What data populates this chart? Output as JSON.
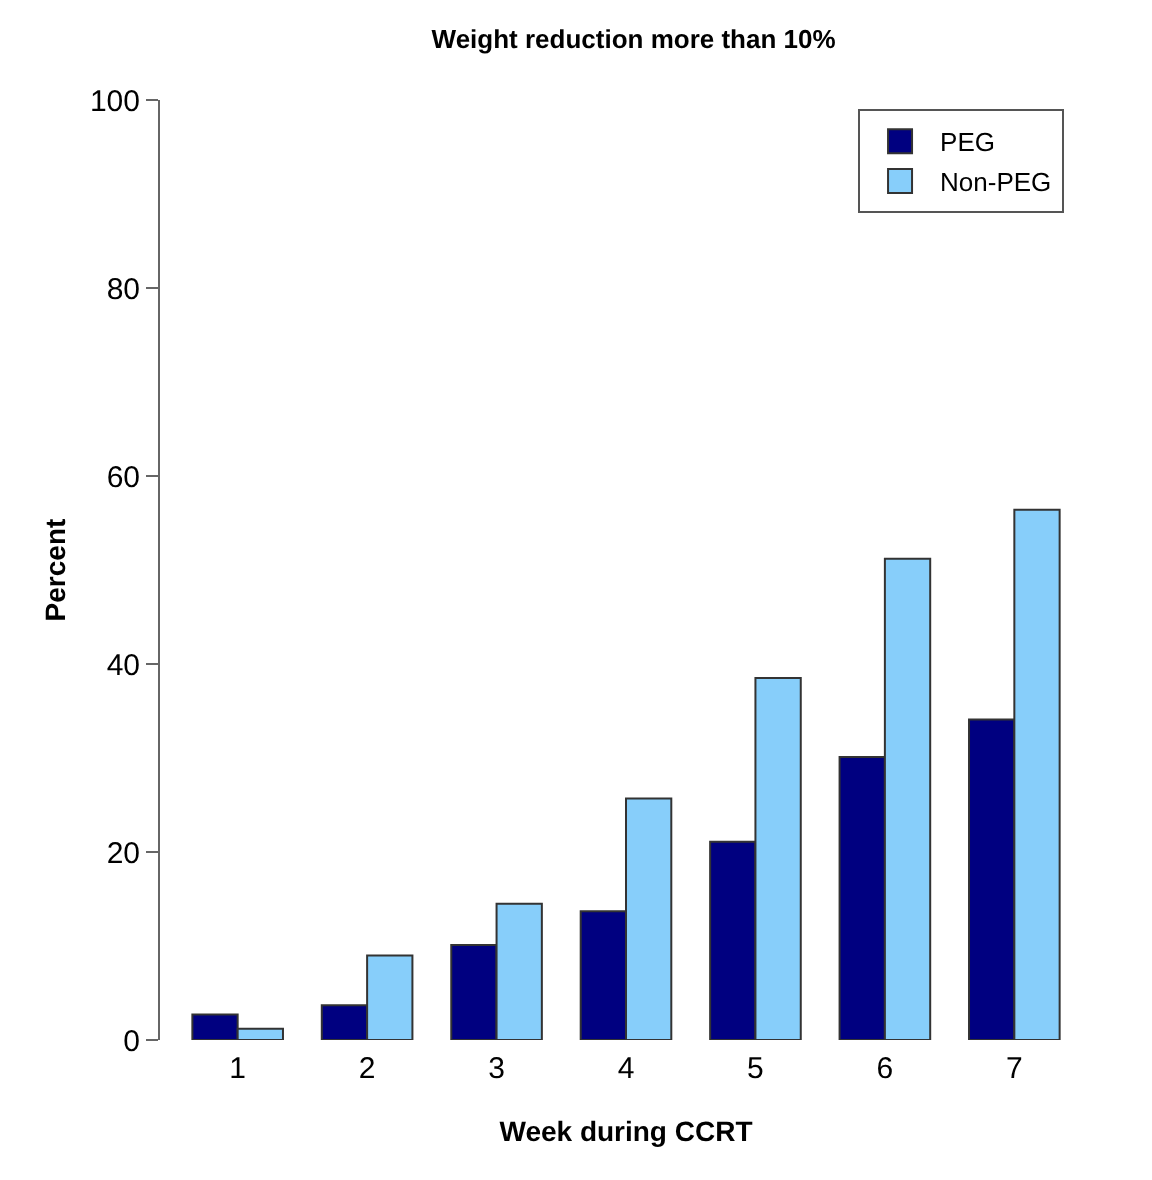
{
  "chart_data": {
    "type": "bar",
    "title": "Weight reduction more than 10%",
    "xlabel": "Week during CCRT",
    "ylabel": "Percent",
    "categories": [
      "1",
      "2",
      "3",
      "4",
      "5",
      "6",
      "7"
    ],
    "series": [
      {
        "name": "PEG",
        "color": "#000080",
        "values": [
          2.7,
          3.7,
          10.1,
          13.7,
          21.1,
          30.1,
          34.1
        ]
      },
      {
        "name": "Non-PEG",
        "color": "#87cefa",
        "values": [
          1.2,
          9.0,
          14.5,
          25.7,
          38.5,
          51.2,
          56.4
        ]
      }
    ],
    "ylim": [
      0,
      100
    ],
    "yticks": [
      0,
      20,
      40,
      60,
      80,
      100
    ],
    "legend": "top right"
  }
}
